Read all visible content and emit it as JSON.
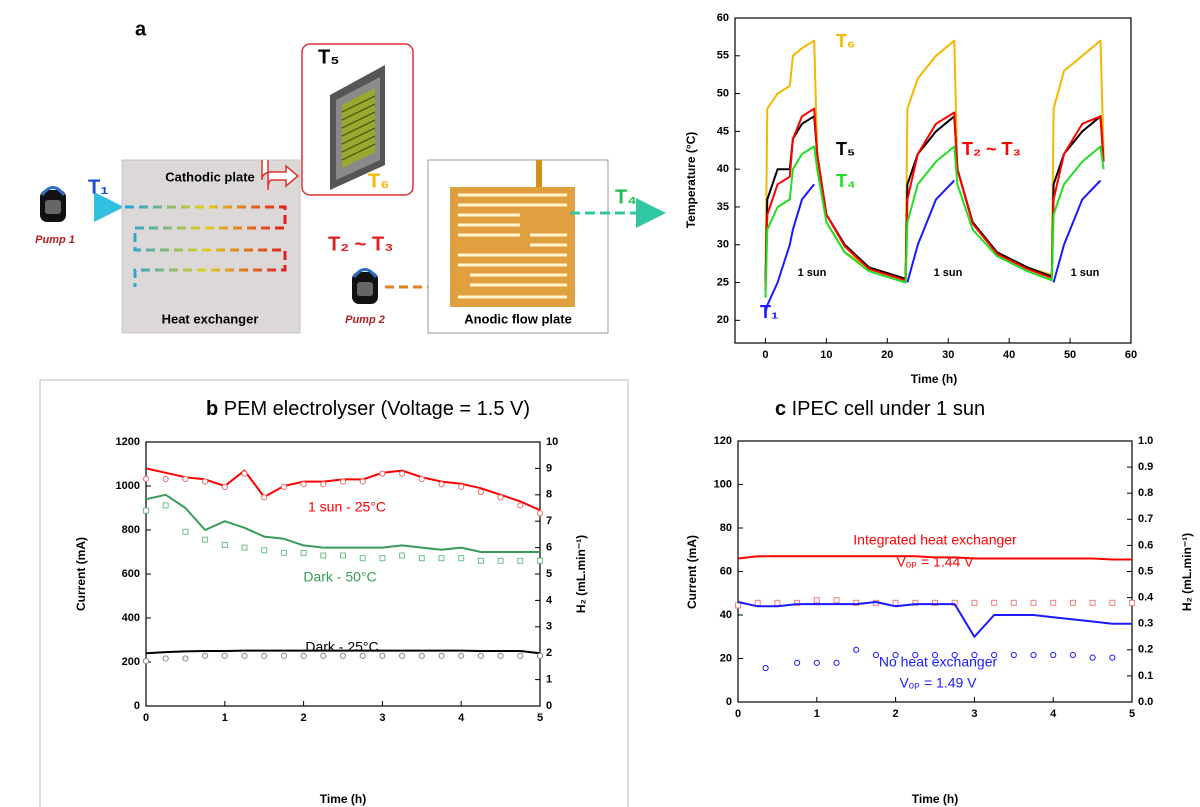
{
  "diagram": {
    "panel_label": "a",
    "t1": "T₁",
    "pump1": "Pump 1",
    "cathodic_plate": "Cathodic plate",
    "heat_exchanger": "Heat exchanger",
    "t5": "T₅",
    "t6": "T₆",
    "t2_t3": "T₂ ~ T₃",
    "pump2": "Pump 2",
    "anodic_flow_plate": "Anodic flow plate",
    "t4": "T₄"
  },
  "chart_data": [
    {
      "type": "line",
      "xlabel": "Time (h)",
      "ylabel": "Temperature (°C)",
      "xlim": [
        -5,
        60
      ],
      "ylim": [
        17,
        60
      ],
      "xticks": [
        0,
        10,
        20,
        30,
        40,
        50,
        60
      ],
      "yticks": [
        20,
        25,
        30,
        35,
        40,
        45,
        50,
        55,
        60
      ],
      "x": [
        0,
        0.3,
        2,
        4,
        4.5,
        6,
        8,
        8.5,
        10,
        13,
        17,
        21,
        23,
        23.3,
        25,
        28,
        31,
        31.5,
        34,
        38,
        43,
        47,
        47.3,
        49,
        52,
        55,
        55.5
      ],
      "series": [
        {
          "name": "T₆",
          "color": "#f5b800",
          "values": [
            26,
            48,
            50,
            51,
            55,
            56,
            57,
            42,
            33,
            29,
            27,
            26,
            25.5,
            48,
            52,
            55,
            57,
            40,
            33,
            29,
            27,
            26,
            48,
            53,
            55,
            57,
            42
          ]
        },
        {
          "name": "T₅",
          "color": "#000000",
          "values": [
            25,
            36,
            40,
            40,
            44,
            46,
            47,
            42,
            34,
            30,
            27,
            26,
            25.5,
            38,
            42,
            45,
            47,
            40,
            33,
            29,
            27,
            25.8,
            38,
            42,
            45,
            47,
            41
          ]
        },
        {
          "name": "T₂ ~ T₃",
          "color": "#ff0000",
          "values": [
            24,
            34,
            38,
            39,
            44,
            47,
            48,
            42,
            34,
            29.8,
            26.8,
            25.8,
            25.3,
            36,
            42,
            46,
            47.5,
            40,
            32.8,
            28.8,
            26.8,
            25.6,
            36,
            42,
            46,
            47,
            41
          ]
        },
        {
          "name": "T₄",
          "color": "#22dd22",
          "values": [
            23,
            32,
            35,
            36,
            40,
            42,
            43,
            40,
            33,
            29,
            26.5,
            25.5,
            25,
            33,
            38,
            41,
            43,
            38,
            32,
            28.5,
            26.5,
            25.3,
            34,
            38,
            41,
            43,
            40
          ]
        },
        {
          "name": "T₁",
          "color": "#1a1aff",
          "values": [
            21,
            22,
            25,
            30,
            32,
            36,
            38,
            null,
            null,
            null,
            null,
            null,
            null,
            25,
            30,
            36,
            38.5,
            null,
            null,
            null,
            null,
            null,
            25,
            30,
            36,
            38.5,
            null
          ]
        }
      ],
      "annotations": [
        "1 sun",
        "1 sun",
        "1 sun"
      ]
    },
    {
      "type": "line",
      "panel": "b",
      "title": "PEM electrolyser (Voltage = 1.5 V)",
      "xlabel": "Time (h)",
      "ylabel": "Current (mA)",
      "y2label": "H₂ (mL.min⁻¹)",
      "xlim": [
        0,
        5
      ],
      "ylim": [
        0,
        1200
      ],
      "y2lim": [
        0,
        10
      ],
      "xticks": [
        0,
        1,
        2,
        3,
        4,
        5
      ],
      "yticks": [
        0,
        200,
        400,
        600,
        800,
        1000,
        1200
      ],
      "y2ticks": [
        0,
        1,
        2,
        3,
        4,
        5,
        6,
        7,
        8,
        9,
        10
      ],
      "x": [
        0,
        0.25,
        0.5,
        0.75,
        1,
        1.25,
        1.5,
        1.75,
        2,
        2.25,
        2.5,
        2.75,
        3,
        3.25,
        3.5,
        3.75,
        4,
        4.25,
        4.5,
        4.75,
        5
      ],
      "series": [
        {
          "name": "1 sun - 25°C",
          "color": "#ff0000",
          "values": [
            1080,
            1060,
            1040,
            1030,
            1000,
            1070,
            950,
            1000,
            1020,
            1020,
            1030,
            1030,
            1060,
            1070,
            1040,
            1020,
            1010,
            990,
            960,
            930,
            890
          ]
        },
        {
          "color": "#e87070",
          "axis": "y2",
          "marker": "circle",
          "values": [
            8.6,
            8.6,
            8.6,
            8.5,
            8.3,
            8.8,
            7.9,
            8.3,
            8.4,
            8.4,
            8.5,
            8.5,
            8.8,
            8.8,
            8.6,
            8.4,
            8.3,
            8.1,
            7.9,
            7.6,
            7.3
          ]
        },
        {
          "name": "Dark - 50°C",
          "color": "#3a9a5b",
          "values": [
            940,
            960,
            900,
            800,
            840,
            810,
            770,
            760,
            730,
            720,
            720,
            720,
            720,
            730,
            720,
            710,
            720,
            700,
            700,
            700,
            700
          ]
        },
        {
          "color": "#6fbf8a",
          "axis": "y2",
          "marker": "square",
          "values": [
            7.4,
            7.6,
            6.6,
            6.3,
            6.1,
            6.0,
            5.9,
            5.8,
            5.8,
            5.7,
            5.7,
            5.6,
            5.6,
            5.7,
            5.6,
            5.6,
            5.6,
            5.5,
            5.5,
            5.5,
            5.5
          ]
        },
        {
          "name": "Dark - 25°C",
          "color": "#000000",
          "values": [
            240,
            245,
            248,
            250,
            250,
            252,
            252,
            252,
            252,
            252,
            252,
            252,
            252,
            252,
            252,
            252,
            252,
            250,
            250,
            250,
            240
          ]
        },
        {
          "color": "#888888",
          "axis": "y2",
          "marker": "circle",
          "values": [
            1.7,
            1.8,
            1.8,
            1.9,
            1.9,
            1.9,
            1.9,
            1.9,
            1.9,
            1.9,
            1.9,
            1.9,
            1.9,
            1.9,
            1.9,
            1.9,
            1.9,
            1.9,
            1.9,
            1.9,
            1.9
          ]
        }
      ]
    },
    {
      "type": "line",
      "panel": "c",
      "title": "IPEC cell under 1 sun",
      "xlabel": "Time (h)",
      "ylabel": "Current (mA)",
      "y2label": "H₂ (mL.min⁻¹)",
      "xlim": [
        0,
        5
      ],
      "ylim": [
        0,
        120
      ],
      "y2lim": [
        0,
        1
      ],
      "xticks": [
        0,
        1,
        2,
        3,
        4,
        5
      ],
      "yticks": [
        0,
        20,
        40,
        60,
        80,
        100,
        120
      ],
      "y2ticks": [
        {
          "value": 0,
          "label": "0.0"
        },
        0.1,
        0.2,
        0.3,
        0.4,
        0.5,
        0.6,
        0.7,
        0.8,
        0.9,
        {
          "value": 1,
          "label": "1.0"
        }
      ],
      "x": [
        0,
        0.25,
        0.5,
        0.75,
        1,
        1.25,
        1.5,
        1.75,
        2,
        2.25,
        2.5,
        2.75,
        3,
        3.25,
        3.5,
        3.75,
        4,
        4.25,
        4.5,
        4.75,
        5
      ],
      "series": [
        {
          "name": "Integrated heat exchanger",
          "color": "#ff0000",
          "values": [
            66,
            67,
            67,
            67,
            67,
            67,
            67,
            67,
            67,
            67,
            66.5,
            66.5,
            66,
            66,
            66,
            66,
            66,
            66,
            66,
            65.5,
            65.5
          ]
        },
        {
          "color": "#f08080",
          "axis": "y2",
          "marker": "square",
          "values": [
            0.37,
            0.38,
            0.38,
            0.38,
            0.39,
            0.39,
            0.38,
            0.38,
            0.38,
            0.38,
            0.38,
            0.38,
            0.38,
            0.38,
            0.38,
            0.38,
            0.38,
            0.38,
            0.38,
            0.38,
            0.38
          ]
        },
        {
          "name": "No heat exchanger",
          "color": "#1a1aff",
          "values": [
            46,
            44,
            44,
            45,
            45,
            45,
            45,
            46,
            44,
            45,
            45,
            45,
            30,
            40,
            40,
            40,
            39,
            38,
            37,
            36,
            36
          ]
        },
        {
          "color": "#1a1aff",
          "axis": "y2",
          "marker": "circle",
          "x": [
            0.35,
            0.75,
            1,
            1.25,
            1.5,
            1.75,
            2,
            2.25,
            2.5,
            2.75,
            3,
            3.25,
            3.5,
            3.75,
            4,
            4.25,
            4.5,
            4.75
          ],
          "values": [
            0.13,
            0.15,
            0.15,
            0.15,
            0.2,
            0.18,
            0.18,
            0.18,
            0.18,
            0.18,
            0.18,
            0.18,
            0.18,
            0.18,
            0.18,
            0.18,
            0.17,
            0.17
          ]
        }
      ],
      "annotations": [
        "Vₒₚ = 1.44 V",
        "Vₒₚ = 1.49 V"
      ]
    }
  ]
}
